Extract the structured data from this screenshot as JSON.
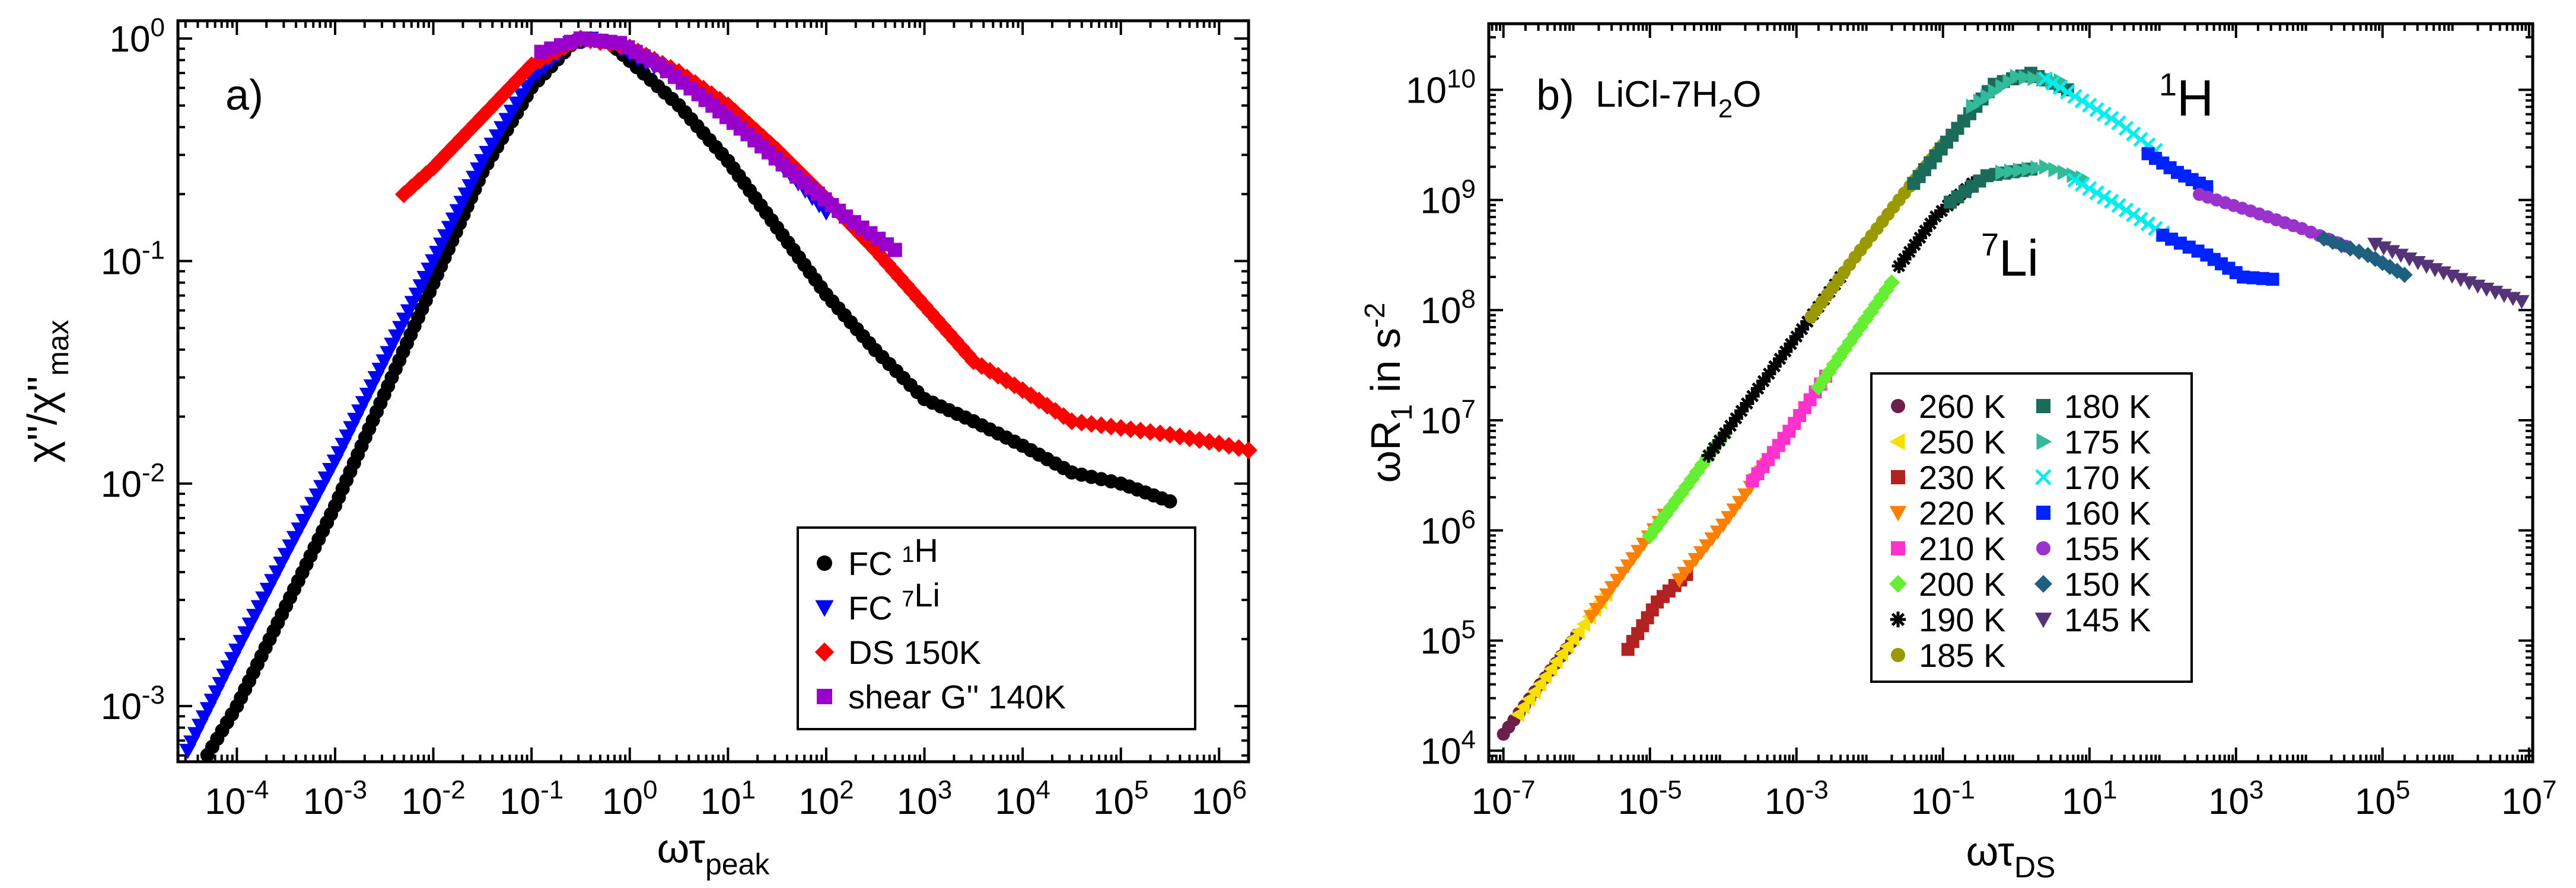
{
  "chart_data": [
    {
      "type": "scatter",
      "panel_label": "a)",
      "xscale": "log",
      "yscale": "log",
      "xlim_exp": [
        -4.6,
        6.3
      ],
      "ylim_exp": [
        -3.25,
        0.08
      ],
      "x_ticks": [
        {
          "base": "10",
          "exp": "-4",
          "v": -4
        },
        {
          "base": "10",
          "exp": "-3",
          "v": -3
        },
        {
          "base": "10",
          "exp": "-2",
          "v": -2
        },
        {
          "base": "10",
          "exp": "-1",
          "v": -1
        },
        {
          "base": "10",
          "exp": "0",
          "v": 0
        },
        {
          "base": "10",
          "exp": "1",
          "v": 1
        },
        {
          "base": "10",
          "exp": "2",
          "v": 2
        },
        {
          "base": "10",
          "exp": "3",
          "v": 3
        },
        {
          "base": "10",
          "exp": "4",
          "v": 4
        },
        {
          "base": "10",
          "exp": "5",
          "v": 5
        },
        {
          "base": "10",
          "exp": "6",
          "v": 6
        }
      ],
      "y_ticks": [
        {
          "base": "10",
          "exp": "-3",
          "v": -3
        },
        {
          "base": "10",
          "exp": "-2",
          "v": -2
        },
        {
          "base": "10",
          "exp": "-1",
          "v": -1
        },
        {
          "base": "10",
          "exp": "0",
          "v": 0
        }
      ],
      "xlabel": {
        "main": "ωτ",
        "sub": "peak"
      },
      "ylabel": {
        "main": "χ''/χ''",
        "sub": "max"
      },
      "series": [
        {
          "key": "fc1h",
          "name": "FC ¹H",
          "marker": "circle",
          "color": "#000000",
          "points": [
            [
              -4.3,
              -3.22
            ],
            [
              -4.0,
              -3.0
            ],
            [
              -3.5,
              -2.55
            ],
            [
              -3.0,
              -2.1
            ],
            [
              -2.5,
              -1.6
            ],
            [
              -2.0,
              -1.1
            ],
            [
              -1.5,
              -0.6
            ],
            [
              -1.0,
              -0.22
            ],
            [
              -0.6,
              -0.03
            ],
            [
              -0.4,
              0.0
            ],
            [
              -0.2,
              -0.02
            ],
            [
              0.0,
              -0.1
            ],
            [
              0.5,
              -0.3
            ],
            [
              1.0,
              -0.55
            ],
            [
              1.5,
              -0.85
            ],
            [
              2.0,
              -1.15
            ],
            [
              2.5,
              -1.4
            ],
            [
              3.0,
              -1.62
            ],
            [
              3.5,
              -1.72
            ],
            [
              4.0,
              -1.83
            ],
            [
              4.5,
              -1.95
            ],
            [
              5.0,
              -2.0
            ],
            [
              5.5,
              -2.08
            ]
          ]
        },
        {
          "key": "fc7li",
          "name": "FC ⁷Li",
          "marker": "triangle-down",
          "color": "#0000ff",
          "points": [
            [
              -4.5,
              -3.2
            ],
            [
              -4.0,
              -2.75
            ],
            [
              -3.5,
              -2.32
            ],
            [
              -3.0,
              -1.9
            ],
            [
              -2.5,
              -1.45
            ],
            [
              -2.0,
              -1.0
            ],
            [
              -1.5,
              -0.55
            ],
            [
              -1.0,
              -0.18
            ],
            [
              -0.6,
              -0.02
            ],
            [
              -0.4,
              0.0
            ],
            [
              -0.2,
              -0.02
            ],
            [
              0.0,
              -0.07
            ],
            [
              0.5,
              -0.18
            ],
            [
              1.0,
              -0.35
            ],
            [
              1.5,
              -0.55
            ],
            [
              2.0,
              -0.78
            ]
          ]
        },
        {
          "key": "ds150",
          "name": "DS 150K",
          "marker": "diamond",
          "color": "#ff0000",
          "points": [
            [
              -2.3,
              -0.7
            ],
            [
              -2.0,
              -0.58
            ],
            [
              -1.5,
              -0.35
            ],
            [
              -1.0,
              -0.12
            ],
            [
              -0.5,
              0.0
            ],
            [
              0.0,
              -0.04
            ],
            [
              0.5,
              -0.15
            ],
            [
              1.0,
              -0.3
            ],
            [
              1.5,
              -0.5
            ],
            [
              2.0,
              -0.72
            ],
            [
              2.5,
              -0.95
            ],
            [
              3.0,
              -1.2
            ],
            [
              3.5,
              -1.45
            ],
            [
              4.0,
              -1.58
            ],
            [
              4.5,
              -1.72
            ],
            [
              5.0,
              -1.75
            ],
            [
              5.5,
              -1.78
            ],
            [
              6.0,
              -1.82
            ],
            [
              6.3,
              -1.85
            ]
          ]
        },
        {
          "key": "shear",
          "name": "shear G'' 140K",
          "marker": "square",
          "color": "#9900cc",
          "points": [
            [
              -0.9,
              -0.06
            ],
            [
              -0.5,
              0.0
            ],
            [
              -0.1,
              -0.02
            ],
            [
              0.3,
              -0.12
            ],
            [
              0.7,
              -0.25
            ],
            [
              1.2,
              -0.43
            ],
            [
              1.7,
              -0.62
            ],
            [
              2.2,
              -0.8
            ],
            [
              2.7,
              -0.95
            ]
          ]
        }
      ]
    },
    {
      "type": "scatter",
      "panel_label": "b)",
      "annotation": {
        "main": "LiCl-7H",
        "sub": "2",
        "tail": "O"
      },
      "nucleus_1h": {
        "sup": "1",
        "main": "H"
      },
      "nucleus_7li": {
        "sup": "7",
        "main": "Li"
      },
      "xscale": "log",
      "yscale": "log",
      "xlim_exp": [
        -7.2,
        7.05
      ],
      "ylim_exp": [
        3.9,
        10.6
      ],
      "x_ticks": [
        {
          "base": "10",
          "exp": "-7",
          "v": -7
        },
        {
          "base": "10",
          "exp": "-5",
          "v": -5
        },
        {
          "base": "10",
          "exp": "-3",
          "v": -3
        },
        {
          "base": "10",
          "exp": "-1",
          "v": -1
        },
        {
          "base": "10",
          "exp": "1",
          "v": 1
        },
        {
          "base": "10",
          "exp": "3",
          "v": 3
        },
        {
          "base": "10",
          "exp": "5",
          "v": 5
        },
        {
          "base": "10",
          "exp": "7",
          "v": 7
        }
      ],
      "y_ticks": [
        {
          "base": "10",
          "exp": "4",
          "v": 4
        },
        {
          "base": "10",
          "exp": "5",
          "v": 5
        },
        {
          "base": "10",
          "exp": "6",
          "v": 6
        },
        {
          "base": "10",
          "exp": "7",
          "v": 7
        },
        {
          "base": "10",
          "exp": "8",
          "v": 8
        },
        {
          "base": "10",
          "exp": "9",
          "v": 9
        },
        {
          "base": "10",
          "exp": "10",
          "v": 10
        }
      ],
      "xlabel": {
        "main": "ωτ",
        "sub": "DS"
      },
      "ylabel": {
        "pre": "ωR",
        "sub": "1",
        "mid": " in s",
        "sup": "-2"
      },
      "legend_col1": [
        {
          "label": "260 K",
          "marker": "circle",
          "color": "#6b1f4a"
        },
        {
          "label": "250 K",
          "marker": "triangle-left",
          "color": "#f5e000"
        },
        {
          "label": "230 K",
          "marker": "square",
          "color": "#b22222"
        },
        {
          "label": "220 K",
          "marker": "triangle-down",
          "color": "#ff7f00"
        },
        {
          "label": "210 K",
          "marker": "square",
          "color": "#ff33cc"
        },
        {
          "label": "200 K",
          "marker": "diamond",
          "color": "#66ee33"
        },
        {
          "label": "190 K",
          "marker": "star",
          "color": "#000000"
        },
        {
          "label": "185 K",
          "marker": "circle",
          "color": "#999900"
        }
      ],
      "legend_col2": [
        {
          "label": "180 K",
          "marker": "square",
          "color": "#1a6b5a"
        },
        {
          "label": "175 K",
          "marker": "triangle-right",
          "color": "#33bb99"
        },
        {
          "label": "170 K",
          "marker": "x",
          "color": "#00eeee"
        },
        {
          "label": "160 K",
          "marker": "square",
          "color": "#0022ff"
        },
        {
          "label": "155 K",
          "marker": "circle",
          "color": "#9933cc"
        },
        {
          "label": "150 K",
          "marker": "diamond",
          "color": "#1f5f80"
        },
        {
          "label": "145 K",
          "marker": "triangle-down",
          "color": "#553377"
        }
      ],
      "series": [
        {
          "nucleus": "1H",
          "temp": "260 K",
          "color": "#6b1f4a",
          "marker": "circle",
          "points": [
            [
              -7.0,
              4.15
            ],
            [
              -6.5,
              4.6
            ],
            [
              -6.0,
              5.05
            ]
          ]
        },
        {
          "nucleus": "1H",
          "temp": "250 K",
          "color": "#f5e000",
          "marker": "triangle-left",
          "points": [
            [
              -6.8,
              4.33
            ],
            [
              -6.2,
              4.88
            ],
            [
              -5.6,
              5.42
            ]
          ]
        },
        {
          "nucleus": "1H",
          "temp": "220 K",
          "color": "#ff7f00",
          "marker": "triangle-down",
          "points": [
            [
              -5.8,
              5.22
            ],
            [
              -5.3,
              5.68
            ],
            [
              -4.8,
              6.14
            ]
          ]
        },
        {
          "nucleus": "1H",
          "temp": "200 K",
          "color": "#66ee33",
          "marker": "diamond",
          "points": [
            [
              -5.0,
              5.95
            ],
            [
              -4.5,
              6.4
            ],
            [
              -4.0,
              6.86
            ]
          ]
        },
        {
          "nucleus": "1H",
          "temp": "190 K",
          "color": "#000000",
          "marker": "star",
          "points": [
            [
              -4.2,
              6.68
            ],
            [
              -3.6,
              7.22
            ],
            [
              -3.0,
              7.76
            ],
            [
              -2.4,
              8.3
            ]
          ]
        },
        {
          "nucleus": "1H",
          "temp": "185 K",
          "color": "#999900",
          "marker": "circle",
          "points": [
            [
              -2.8,
              7.94
            ],
            [
              -2.2,
              8.48
            ],
            [
              -1.6,
              9.0
            ],
            [
              -1.0,
              9.5
            ]
          ]
        },
        {
          "nucleus": "1H",
          "temp": "180 K",
          "color": "#1a6b5a",
          "marker": "square",
          "points": [
            [
              -1.4,
              9.15
            ],
            [
              -0.8,
              9.65
            ],
            [
              -0.3,
              10.05
            ],
            [
              0.2,
              10.15
            ],
            [
              0.7,
              10.0
            ]
          ]
        },
        {
          "nucleus": "1H",
          "temp": "175 K",
          "color": "#33bb99",
          "marker": "triangle-right",
          "points": [
            [
              -0.6,
              9.85
            ],
            [
              0.0,
              10.12
            ],
            [
              0.6,
              10.08
            ]
          ]
        },
        {
          "nucleus": "1H",
          "temp": "170 K",
          "color": "#00eeee",
          "marker": "x",
          "points": [
            [
              0.4,
              10.1
            ],
            [
              0.9,
              9.9
            ],
            [
              1.4,
              9.7
            ],
            [
              1.9,
              9.45
            ]
          ]
        },
        {
          "nucleus": "1H",
          "temp": "160 K",
          "color": "#0022ff",
          "marker": "square",
          "points": [
            [
              1.8,
              9.42
            ],
            [
              2.2,
              9.25
            ],
            [
              2.6,
              9.12
            ]
          ]
        },
        {
          "nucleus": "1H",
          "temp": "155 K",
          "color": "#9933cc",
          "marker": "circle",
          "points": [
            [
              2.5,
              9.05
            ],
            [
              3.2,
              8.9
            ],
            [
              3.9,
              8.74
            ],
            [
              4.5,
              8.58
            ]
          ]
        },
        {
          "nucleus": "1H",
          "temp": "150 K",
          "color": "#1f5f80",
          "marker": "diamond",
          "points": [
            [
              4.2,
              8.65
            ],
            [
              4.8,
              8.5
            ],
            [
              5.3,
              8.32
            ]
          ]
        },
        {
          "nucleus": "1H",
          "temp": "145 K",
          "color": "#553377",
          "marker": "triangle-down",
          "points": [
            [
              4.9,
              8.6
            ],
            [
              5.6,
              8.4
            ],
            [
              6.3,
              8.22
            ],
            [
              6.9,
              8.08
            ]
          ]
        },
        {
          "nucleus": "7Li",
          "temp": "230 K",
          "color": "#b22222",
          "marker": "square",
          "points": [
            [
              -5.3,
              4.92
            ],
            [
              -4.9,
              5.35
            ],
            [
              -4.5,
              5.6
            ]
          ]
        },
        {
          "nucleus": "7Li",
          "temp": "220 K",
          "color": "#ff7f00",
          "marker": "triangle-down",
          "points": [
            [
              -4.6,
              5.55
            ],
            [
              -4.0,
              6.05
            ],
            [
              -3.4,
              6.6
            ]
          ]
        },
        {
          "nucleus": "7Li",
          "temp": "210 K",
          "color": "#ff33cc",
          "marker": "square",
          "points": [
            [
              -3.6,
              6.45
            ],
            [
              -3.1,
              6.9
            ],
            [
              -2.6,
              7.4
            ]
          ]
        },
        {
          "nucleus": "7Li",
          "temp": "200 K",
          "color": "#66ee33",
          "marker": "diamond",
          "points": [
            [
              -2.7,
              7.3
            ],
            [
              -2.2,
              7.78
            ],
            [
              -1.7,
              8.25
            ]
          ]
        },
        {
          "nucleus": "7Li",
          "temp": "190 K",
          "color": "#000000",
          "marker": "star",
          "points": [
            [
              -1.6,
              8.4
            ],
            [
              -1.1,
              8.85
            ],
            [
              -0.6,
              9.15
            ]
          ]
        },
        {
          "nucleus": "7Li",
          "temp": "180 K",
          "color": "#1a6b5a",
          "marker": "square",
          "points": [
            [
              -0.9,
              8.98
            ],
            [
              -0.4,
              9.22
            ],
            [
              0.2,
              9.28
            ]
          ]
        },
        {
          "nucleus": "7Li",
          "temp": "175 K",
          "color": "#33bb99",
          "marker": "triangle-right",
          "points": [
            [
              -0.2,
              9.25
            ],
            [
              0.4,
              9.3
            ],
            [
              0.9,
              9.2
            ]
          ]
        },
        {
          "nucleus": "7Li",
          "temp": "170 K",
          "color": "#00eeee",
          "marker": "x",
          "points": [
            [
              0.8,
              9.18
            ],
            [
              1.4,
              8.95
            ],
            [
              2.0,
              8.7
            ]
          ]
        },
        {
          "nucleus": "7Li",
          "temp": "160 K",
          "color": "#0022ff",
          "marker": "square",
          "points": [
            [
              2.0,
              8.68
            ],
            [
              2.6,
              8.5
            ],
            [
              3.1,
              8.3
            ],
            [
              3.5,
              8.28
            ]
          ]
        }
      ]
    }
  ]
}
